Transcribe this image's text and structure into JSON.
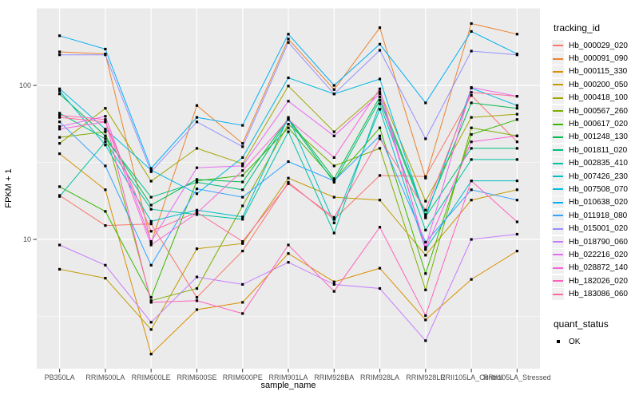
{
  "style": {
    "background": "#FFFFFF",
    "panel_bg": "#EBEBEB",
    "grid_color": "#FFFFFF",
    "axis_text_color": "#4D4D4D",
    "axis_title_color": "#000000",
    "tick_color": "#333333",
    "legend_key_bg": "#F0F0F0",
    "point_color": "#000000"
  },
  "chart_data": {
    "type": "line",
    "title": "",
    "xlabel": "sample_name",
    "ylabel": "FPKM + 1",
    "y_scale": "log10",
    "ylim": [
      1.35,
      320
    ],
    "grid": true,
    "y_ticks": [
      {
        "value": 10,
        "label": "10"
      },
      {
        "value": 100,
        "label": "100"
      }
    ],
    "y_minor_breaks": [
      3.1623,
      31.623,
      316.23
    ],
    "categories": [
      "PB350LA",
      "RRIM600LA",
      "RRIM600LE",
      "RRIM600SE",
      "RRIM600PE",
      "RRIM901LA",
      "RRIM928BA",
      "RRIM928LA",
      "RRIM928LE",
      "RRII105LA_Control",
      "RRII105LA_Stressed"
    ],
    "points": {
      "shape": "square",
      "color": "#000000",
      "size": 3.2
    },
    "legend": {
      "title": "tracking_id",
      "position": "right"
    },
    "legend2": {
      "title": "quant_status",
      "items": [
        "OK"
      ]
    },
    "series": [
      {
        "name": "Hb_000029_020",
        "color": "#F8766D",
        "values": [
          19.3,
          12.3,
          12.6,
          4.2,
          8.4,
          23.5,
          13.5,
          26,
          25.6,
          86,
          43
        ]
      },
      {
        "name": "Hb_000091_090",
        "color": "#EA8331",
        "values": [
          165,
          160,
          9.5,
          74,
          42,
          200,
          94,
          237,
          25,
          252,
          215
        ]
      },
      {
        "name": "Hb_000115_330",
        "color": "#D89000",
        "values": [
          36,
          21,
          1.8,
          3.5,
          3.9,
          8.1,
          5.3,
          6.5,
          3.0,
          5.5,
          8.4
        ]
      },
      {
        "name": "Hb_000200_050",
        "color": "#C09B00",
        "values": [
          6.4,
          5.6,
          2.6,
          8.7,
          9.4,
          25,
          18.8,
          18,
          7.9,
          18,
          21
        ]
      },
      {
        "name": "Hb_000418_100",
        "color": "#A3A500",
        "values": [
          42,
          71,
          23.9,
          39,
          31,
          99,
          50,
          91,
          17.7,
          62,
          65
        ]
      },
      {
        "name": "Hb_000567_260",
        "color": "#7CAE00",
        "values": [
          46,
          50,
          4.0,
          4.8,
          16.5,
          56,
          30,
          39,
          4.7,
          53,
          47
        ]
      },
      {
        "name": "Hb_000617_020",
        "color": "#39B600",
        "values": [
          22,
          15.2,
          4.2,
          24,
          26,
          53,
          24.2,
          53,
          6.0,
          48,
          60
        ]
      },
      {
        "name": "Hb_001248_130",
        "color": "#00BB4E",
        "values": [
          88,
          47,
          16.7,
          24.5,
          23.6,
          61,
          24.8,
          84,
          14.5,
          77,
          71
        ]
      },
      {
        "name": "Hb_001811_020",
        "color": "#00BF7D",
        "values": [
          66,
          45,
          18.8,
          23.5,
          21,
          60,
          23.5,
          80,
          14.0,
          39,
          39
        ]
      },
      {
        "name": "Hb_002835_410",
        "color": "#00C1A3",
        "values": [
          19,
          43,
          15.7,
          14.5,
          13.5,
          50,
          11,
          76,
          11.5,
          33,
          33
        ]
      },
      {
        "name": "Hb_007426_230",
        "color": "#00BFC4",
        "values": [
          92,
          41,
          13.1,
          15.5,
          14,
          62,
          12.8,
          70,
          8.6,
          24,
          24
        ]
      },
      {
        "name": "Hb_007508_070",
        "color": "#00BAE0",
        "values": [
          95,
          52,
          28.2,
          19.8,
          34,
          112,
          88,
          110,
          13.8,
          96,
          74
        ]
      },
      {
        "name": "Hb_010638_020",
        "color": "#00B0F6",
        "values": [
          210,
          172,
          28.9,
          62,
          55,
          215,
          100,
          185,
          77,
          224,
          160
        ]
      },
      {
        "name": "Hb_011918_080",
        "color": "#35A2FF",
        "values": [
          58,
          30,
          6.8,
          21.3,
          18.8,
          32,
          24,
          47,
          9.6,
          21,
          18
        ]
      },
      {
        "name": "Hb_015001_020",
        "color": "#9590FF",
        "values": [
          158,
          158,
          27.5,
          58,
          40,
          190,
          88,
          169,
          45,
          167,
          158
        ]
      },
      {
        "name": "Hb_018790_060",
        "color": "#C77CFF",
        "values": [
          9.2,
          6.8,
          2.9,
          5.7,
          5.1,
          7.1,
          5.1,
          4.8,
          2.2,
          10,
          10.8
        ]
      },
      {
        "name": "Hb_022216_020",
        "color": "#E76BF3",
        "values": [
          54,
          63,
          9.7,
          29.2,
          30,
          79,
          47,
          88,
          8.9,
          97,
          85
        ]
      },
      {
        "name": "Hb_028872_140",
        "color": "#FA62DB",
        "values": [
          52,
          58,
          9.2,
          14.8,
          28,
          60,
          34,
          95,
          8.6,
          43,
          47
        ]
      },
      {
        "name": "Hb_182026_020",
        "color": "#FF62BC",
        "values": [
          64,
          60,
          3.9,
          4.0,
          3.3,
          9.2,
          4.6,
          12,
          3.2,
          24,
          13
        ]
      },
      {
        "name": "Hb_183086_060",
        "color": "#FF6A98",
        "values": [
          62,
          58,
          11.3,
          15.0,
          9.7,
          23,
          13.9,
          45,
          15.5,
          90,
          85
        ]
      }
    ]
  }
}
